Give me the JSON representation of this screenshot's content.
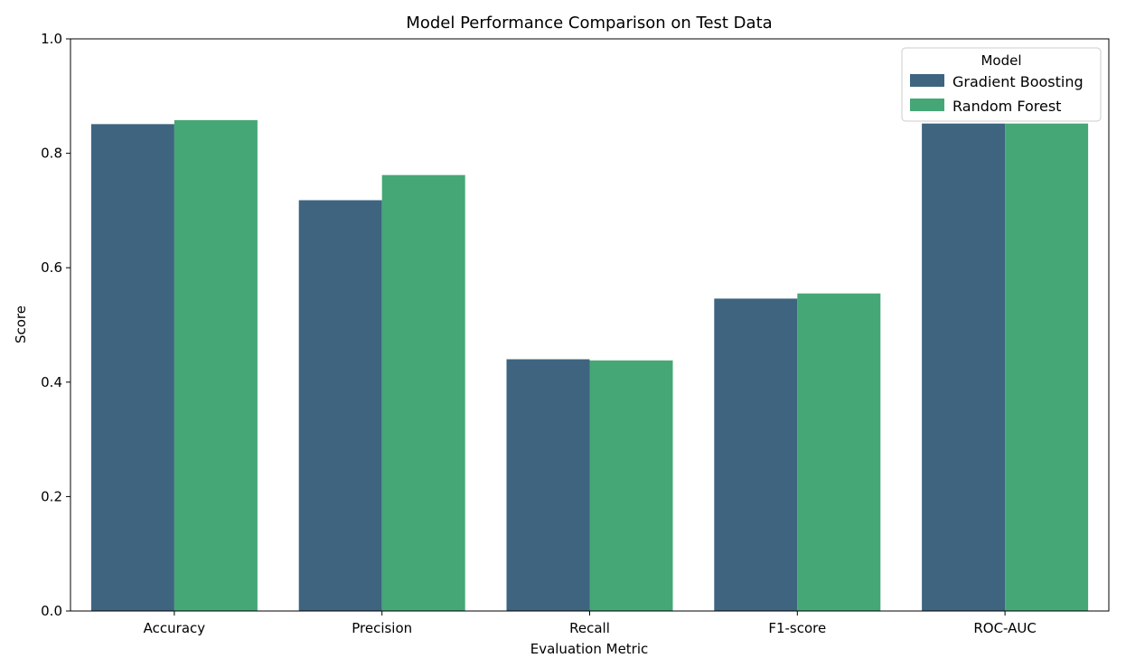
{
  "chart_data": {
    "type": "bar",
    "title": "Model Performance Comparison on Test Data",
    "xlabel": "Evaluation Metric",
    "ylabel": "Score",
    "categories": [
      "Accuracy",
      "Precision",
      "Recall",
      "F1-score",
      "ROC-AUC"
    ],
    "series": [
      {
        "name": "Gradient Boosting",
        "color": "#3e6480",
        "values": [
          0.851,
          0.718,
          0.44,
          0.546,
          0.852
        ]
      },
      {
        "name": "Random Forest",
        "color": "#45a776",
        "values": [
          0.858,
          0.762,
          0.438,
          0.555,
          0.852
        ]
      }
    ],
    "ylim": [
      0.0,
      1.0
    ],
    "yticks": [
      "0.0",
      "0.2",
      "0.4",
      "0.6",
      "0.8",
      "1.0"
    ],
    "grid": false,
    "legend": {
      "title": "Model",
      "placement": "top-right"
    }
  }
}
